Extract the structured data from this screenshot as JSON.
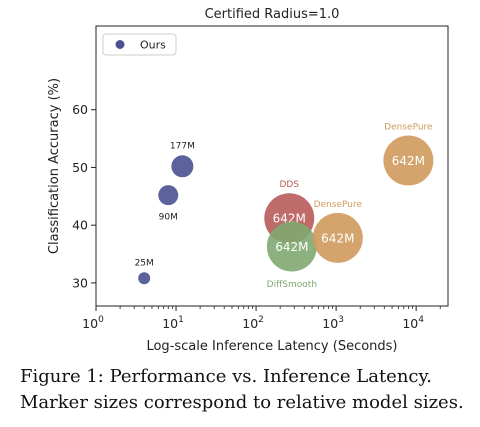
{
  "chart_data": {
    "type": "scatter",
    "title": "Certified Radius=1.0",
    "xlabel": "Log-scale Inference Latency (Seconds)",
    "ylabel": "Classification Accuracy (%)",
    "xscale": "log",
    "xlim": [
      1,
      25000
    ],
    "ylim": [
      26,
      74.5
    ],
    "xticks": [
      1,
      10,
      100,
      1000,
      10000
    ],
    "xtick_labels": [
      {
        "base": "10",
        "exp": "0"
      },
      {
        "base": "10",
        "exp": "1"
      },
      {
        "base": "10",
        "exp": "2"
      },
      {
        "base": "10",
        "exp": "3"
      },
      {
        "base": "10",
        "exp": "4"
      }
    ],
    "yticks": [
      30,
      40,
      50,
      60
    ],
    "grid": false,
    "legend": {
      "position": "top-left",
      "entries": [
        {
          "label": "Ours",
          "color": "#4a5190"
        }
      ]
    },
    "points": [
      {
        "x": 4,
        "y": 30.8,
        "size": 6,
        "color": "#4a5190",
        "label": "25M",
        "label_pos": "above",
        "inner_label": ""
      },
      {
        "x": 8,
        "y": 45.2,
        "size": 10,
        "color": "#4a5190",
        "label": "90M",
        "label_pos": "below",
        "inner_label": ""
      },
      {
        "x": 12,
        "y": 50.2,
        "size": 11,
        "color": "#4a5190",
        "label": "177M",
        "label_pos": "above",
        "inner_label": ""
      },
      {
        "x": 260,
        "y": 41.2,
        "size": 25,
        "color": "#b85b5a",
        "label": "DDS",
        "label_pos": "above",
        "inner_label": "642M"
      },
      {
        "x": 280,
        "y": 36.3,
        "size": 25,
        "color": "#7fa870",
        "label": "DiffSmooth",
        "label_pos": "below",
        "inner_label": "642M"
      },
      {
        "x": 1050,
        "y": 37.8,
        "size": 25,
        "color": "#d09a5c",
        "label": "DensePure",
        "label_pos": "above",
        "inner_label": "642M"
      },
      {
        "x": 8000,
        "y": 51.2,
        "size": 25,
        "color": "#d09a5c",
        "label": "DensePure",
        "label_pos": "above",
        "inner_label": "642M"
      }
    ]
  },
  "caption": {
    "line1": "Figure 1: Performance vs. Inference Latency.",
    "line2": "Marker sizes correspond to relative model sizes."
  }
}
